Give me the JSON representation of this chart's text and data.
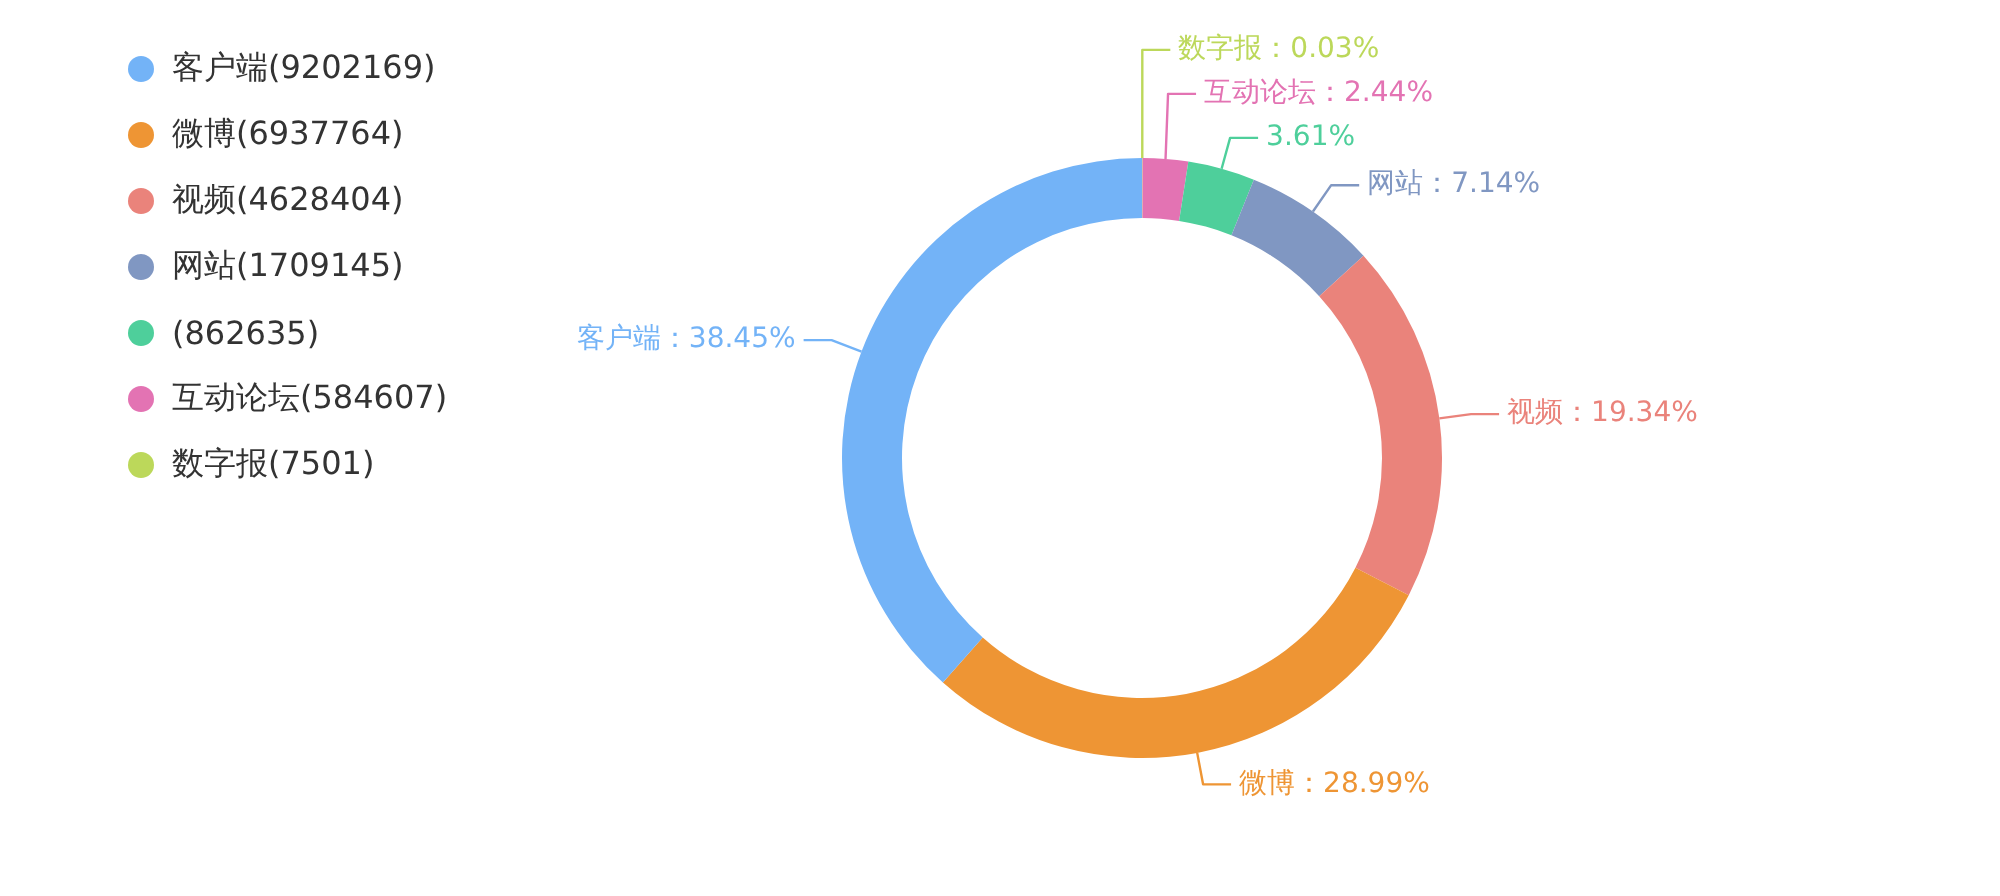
{
  "chart_data": {
    "type": "donut",
    "categories": [
      "客户端(9202169)",
      "微博(6937764)",
      "视频(4628404)",
      "网站(1709145)",
      "(862635)",
      "互动论坛(584607)",
      "数字报(7501)"
    ],
    "values": [
      38.45,
      28.99,
      19.34,
      7.14,
      3.61,
      2.44,
      0.03
    ],
    "colors": [
      "#73b3f7",
      "#ee9534",
      "#ea837b",
      "#8097c2",
      "#4ecf9b",
      "#e373b3",
      "#bcd85a"
    ],
    "value_labels": [
      "客户端：38.45%",
      "微博：28.99%",
      "视频：19.34%",
      "网站：7.14%",
      "3.61%",
      "互动论坛：2.44%",
      "数字报：0.03%"
    ],
    "legend": "top left"
  }
}
